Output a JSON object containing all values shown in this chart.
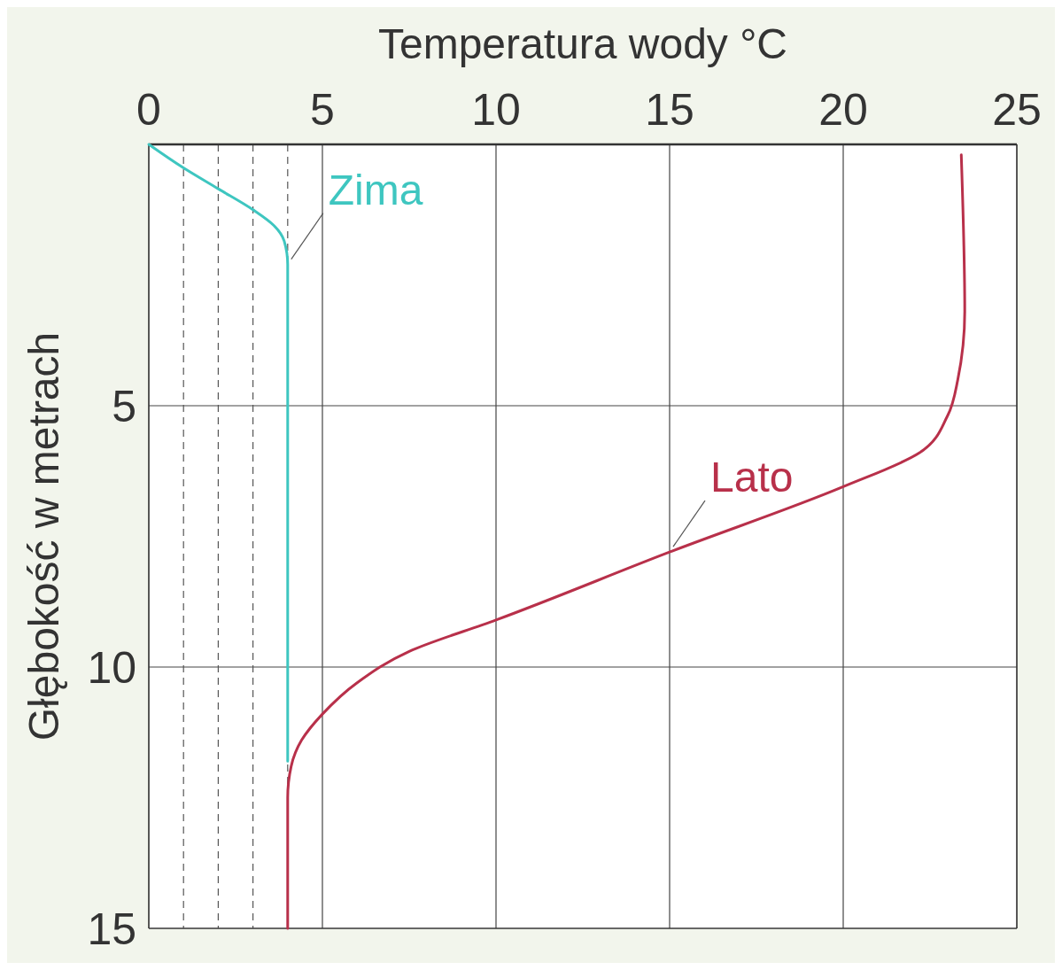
{
  "chart_data": {
    "type": "line",
    "xlabel": "Temperatura wody °C",
    "ylabel": "Głębokość w metrach",
    "xlim": [
      0,
      25
    ],
    "xticks": [
      0,
      5,
      10,
      15,
      20,
      25
    ],
    "ylim": [
      15,
      0
    ],
    "yticks": [
      5,
      10,
      15
    ],
    "grid": true,
    "marker": "none",
    "line_style": "solid",
    "ref_lines": [
      {
        "axis": "x",
        "value": 1,
        "line_style": "dashed"
      },
      {
        "axis": "x",
        "value": 2,
        "line_style": "dashed"
      },
      {
        "axis": "x",
        "value": 3,
        "line_style": "dashed"
      },
      {
        "axis": "x",
        "value": 4,
        "line_style": "dashed"
      }
    ],
    "series": [
      {
        "name": "Zima",
        "color": "#3ec6c0",
        "x": [
          0,
          1,
          2,
          3,
          3.6,
          3.9,
          4,
          4,
          4
        ],
        "values": [
          0,
          0.45,
          0.85,
          1.25,
          1.55,
          1.85,
          2.3,
          6,
          11.8
        ]
      },
      {
        "name": "Lato",
        "color": "#b8304a",
        "x": [
          23.4,
          23.5,
          23.3,
          23,
          22.2,
          20,
          15,
          10,
          7.5,
          6,
          5,
          4.4,
          4.1,
          4,
          4
        ],
        "values": [
          0.2,
          3.2,
          4.5,
          5.2,
          5.9,
          6.55,
          7.8,
          9.1,
          9.7,
          10.3,
          10.9,
          11.4,
          11.9,
          12.5,
          15
        ]
      }
    ]
  }
}
